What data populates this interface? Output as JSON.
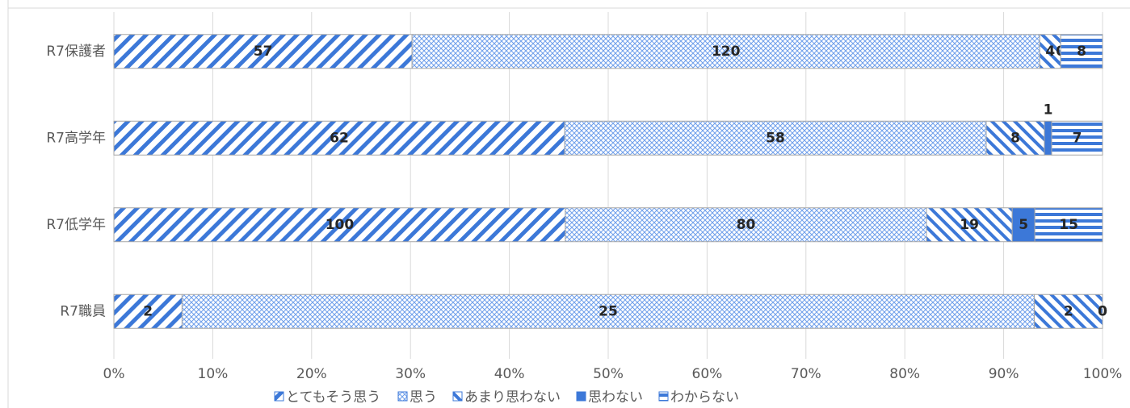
{
  "chart_data": {
    "type": "stacked-bar-100",
    "orientation": "horizontal",
    "categories": [
      "R7保護者",
      "R7高学年",
      "R7低学年",
      "R7職員"
    ],
    "series": [
      {
        "name": "とてもそう思う",
        "color": "#3c78d8",
        "values": [
          57,
          62,
          100,
          2
        ]
      },
      {
        "name": "思う",
        "color": "#3c78d8",
        "values": [
          120,
          58,
          80,
          25
        ]
      },
      {
        "name": "あまり思わない",
        "color": "#3c78d8",
        "values": [
          4,
          8,
          19,
          2
        ]
      },
      {
        "name": "思わない",
        "color": "#3c78d8",
        "values": [
          0,
          1,
          5,
          0
        ]
      },
      {
        "name": "わからない",
        "color": "#3c78d8",
        "values": [
          8,
          7,
          15,
          0
        ]
      }
    ],
    "xlim": [
      0,
      100
    ],
    "xticks": [
      {
        "value": 0,
        "label": "0%"
      },
      {
        "value": 10,
        "label": "10%"
      },
      {
        "value": 20,
        "label": "20%"
      },
      {
        "value": 30,
        "label": "30%"
      },
      {
        "value": 40,
        "label": "40%"
      },
      {
        "value": 50,
        "label": "50%"
      },
      {
        "value": 60,
        "label": "60%"
      },
      {
        "value": 70,
        "label": "70%"
      },
      {
        "value": 80,
        "label": "80%"
      },
      {
        "value": 90,
        "label": "90%"
      },
      {
        "value": 100,
        "label": "100%"
      }
    ],
    "grid": true,
    "legend": "bottom"
  }
}
